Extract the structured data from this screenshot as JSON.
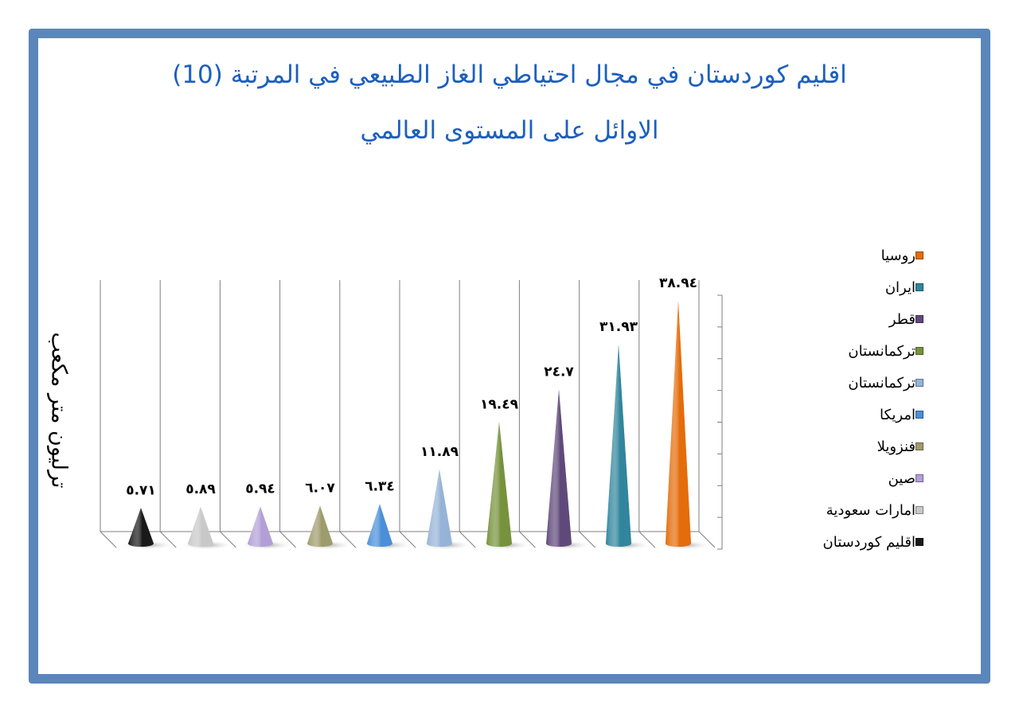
{
  "title_line1": "اقليم كوردستان في مجال احتياطي الغاز الطبيعي في المرتبة (10)",
  "title_line2": "الاوائل على المستوى العالمي",
  "frame_color": "#5b86bb",
  "title_color": "#1c5fbf",
  "chart_data": {
    "type": "bar",
    "style": "3d-cone",
    "title": "",
    "xlabel": "",
    "ylabel": "ترليون متر مكعب",
    "ylim": [
      0,
      40
    ],
    "grid": true,
    "legend_position": "right",
    "categories": [
      "اقليم كوردستان",
      "امارات سعودية",
      "صين",
      "فنزويلا",
      "امريكا",
      "تركمانستان",
      "تركمانستان",
      "قطر",
      "ايران",
      "روسيا"
    ],
    "values": [
      5.71,
      5.89,
      5.94,
      6.07,
      6.34,
      11.89,
      19.49,
      24.7,
      31.93,
      38.94
    ],
    "data_labels": [
      "٥.٧١",
      "٥.٨٩",
      "٥.٩٤",
      "٦.٠٧",
      "٦.٣٤",
      "١١.٨٩",
      "١٩.٤٩",
      "٢٤.٧",
      "٣١.٩٣",
      "٣٨.٩٤"
    ],
    "colors": [
      "#1a1a1a",
      "#c8c8c8",
      "#b19fd6",
      "#9e9b6c",
      "#4a8fd8",
      "#95b3d7",
      "#76923c",
      "#5f497a",
      "#31859c",
      "#e46c0a"
    ]
  },
  "legend": {
    "items": [
      {
        "label": "روسيا",
        "color": "#e46c0a"
      },
      {
        "label": "ايران",
        "color": "#31859c"
      },
      {
        "label": "قطر",
        "color": "#5f497a"
      },
      {
        "label": "تركمانستان",
        "color": "#76923c"
      },
      {
        "label": "تركمانستان",
        "color": "#95b3d7"
      },
      {
        "label": "امريكا",
        "color": "#4a8fd8"
      },
      {
        "label": "فنزويلا",
        "color": "#9e9b6c"
      },
      {
        "label": "صين",
        "color": "#b19fd6"
      },
      {
        "label": "امارات سعودية",
        "color": "#c8c8c8"
      },
      {
        "label": "اقليم كوردستان",
        "color": "#1a1a1a"
      }
    ]
  }
}
